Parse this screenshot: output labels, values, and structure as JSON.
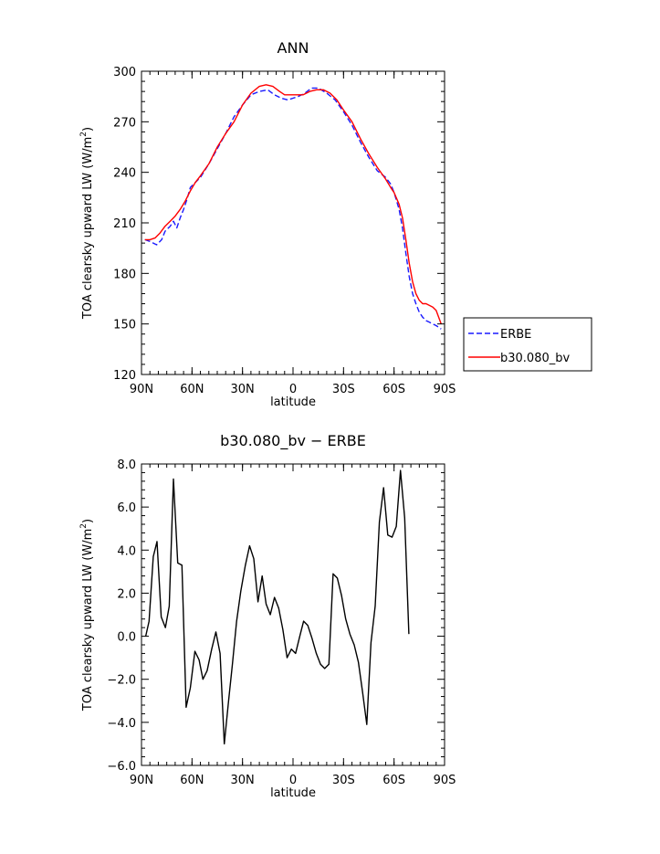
{
  "chart_data": [
    {
      "type": "line",
      "title": "ANN",
      "xlabel": "latitude",
      "ylabel": "TOA clearsky upward LW (W/m²)",
      "ylabel_main": "TOA clearsky upward LW (W/m",
      "ylabel_sup": "2",
      "ylabel_close": ")",
      "xlim": [
        -90,
        90
      ],
      "ylim": [
        120,
        300
      ],
      "xticks": [
        -90,
        -60,
        -30,
        0,
        30,
        60,
        90
      ],
      "xtick_labels": [
        "90N",
        "60N",
        "30N",
        "0",
        "30S",
        "60S",
        "90S"
      ],
      "yticks": [
        120,
        150,
        180,
        210,
        240,
        270,
        300
      ],
      "ytick_labels": [
        "120",
        "150",
        "180",
        "210",
        "240",
        "270",
        "300"
      ],
      "legend": {
        "placement": "right",
        "entries": [
          "ERBE",
          "b30.080_bv"
        ]
      },
      "series": [
        {
          "name": "ERBE",
          "color": "#1a1aff",
          "dash": "dashed",
          "points": [
            [
              -88,
              200
            ],
            [
              -85,
              199
            ],
            [
              -81,
              197
            ],
            [
              -78,
              200
            ],
            [
              -76,
              205
            ],
            [
              -73,
              208
            ],
            [
              -71,
              211
            ],
            [
              -69,
              207
            ],
            [
              -67,
              213
            ],
            [
              -65,
              218
            ],
            [
              -63,
              224
            ],
            [
              -61,
              231
            ],
            [
              -58,
              234
            ],
            [
              -55,
              237
            ],
            [
              -50,
              245
            ],
            [
              -45,
              254
            ],
            [
              -40,
              263
            ],
            [
              -35,
              273
            ],
            [
              -30,
              280
            ],
            [
              -25,
              286
            ],
            [
              -20,
              288
            ],
            [
              -15,
              289
            ],
            [
              -11,
              286
            ],
            [
              -7,
              284
            ],
            [
              -3,
              283
            ],
            [
              0,
              284
            ],
            [
              3,
              285
            ],
            [
              7,
              287
            ],
            [
              11,
              290
            ],
            [
              15,
              290
            ],
            [
              20,
              287
            ],
            [
              25,
              283
            ],
            [
              30,
              276
            ],
            [
              35,
              268
            ],
            [
              40,
              258
            ],
            [
              45,
              249
            ],
            [
              50,
              241
            ],
            [
              55,
              237
            ],
            [
              58,
              233
            ],
            [
              60,
              228
            ],
            [
              63,
              218
            ],
            [
              65,
              207
            ],
            [
              67,
              192
            ],
            [
              69,
              178
            ],
            [
              71,
              168
            ],
            [
              73,
              162
            ],
            [
              75,
              157
            ],
            [
              77,
              154
            ],
            [
              79,
              152
            ],
            [
              81,
              151
            ],
            [
              83,
              150
            ],
            [
              85,
              149
            ],
            [
              88,
              147
            ]
          ]
        },
        {
          "name": "b30.080_bv",
          "color": "#ff0000",
          "dash": "solid",
          "points": [
            [
              -88,
              200
            ],
            [
              -85,
              200
            ],
            [
              -82,
              201
            ],
            [
              -79,
              204
            ],
            [
              -76,
              208
            ],
            [
              -73,
              211
            ],
            [
              -70,
              214
            ],
            [
              -67,
              218
            ],
            [
              -64,
              223
            ],
            [
              -61,
              229
            ],
            [
              -58,
              234
            ],
            [
              -55,
              238
            ],
            [
              -50,
              245
            ],
            [
              -45,
              255
            ],
            [
              -40,
              263
            ],
            [
              -35,
              270
            ],
            [
              -30,
              280
            ],
            [
              -25,
              287
            ],
            [
              -20,
              291
            ],
            [
              -16,
              292
            ],
            [
              -12,
              291
            ],
            [
              -8,
              288
            ],
            [
              -5,
              286
            ],
            [
              -2,
              286
            ],
            [
              2,
              286
            ],
            [
              6,
              286
            ],
            [
              10,
              288
            ],
            [
              14,
              289
            ],
            [
              18,
              289
            ],
            [
              22,
              287
            ],
            [
              26,
              283
            ],
            [
              30,
              277
            ],
            [
              35,
              270
            ],
            [
              40,
              260
            ],
            [
              45,
              251
            ],
            [
              50,
              243
            ],
            [
              55,
              236
            ],
            [
              58,
              231
            ],
            [
              60,
              228
            ],
            [
              63,
              221
            ],
            [
              65,
              213
            ],
            [
              67,
              200
            ],
            [
              69,
              186
            ],
            [
              71,
              175
            ],
            [
              73,
              168
            ],
            [
              75,
              164
            ],
            [
              77,
              162
            ],
            [
              79,
              162
            ],
            [
              81,
              161
            ],
            [
              83,
              160
            ],
            [
              85,
              158
            ],
            [
              88,
              150
            ]
          ]
        }
      ]
    },
    {
      "type": "line",
      "title": "b30.080_bv − ERBE",
      "xlabel": "latitude",
      "ylabel": "TOA clearsky upward LW (W/m²)",
      "ylabel_main": "TOA clearsky upward LW (W/m",
      "ylabel_sup": "2",
      "ylabel_close": ")",
      "xlim": [
        -90,
        90
      ],
      "ylim": [
        -6,
        8
      ],
      "xticks": [
        -90,
        -60,
        -30,
        0,
        30,
        60,
        90
      ],
      "xtick_labels": [
        "90N",
        "60N",
        "30N",
        "0",
        "30S",
        "60S",
        "90S"
      ],
      "yticks": [
        -6,
        -4,
        -2,
        0,
        2,
        4,
        6,
        8
      ],
      "ytick_labels": [
        "−6.0",
        "−4.0",
        "−2.0",
        "0.0",
        "2.0",
        "4.0",
        "6.0",
        "8.0"
      ],
      "series": [
        {
          "color": "#000000",
          "dash": "solid",
          "points": [
            [
              -87.5,
              0.0
            ],
            [
              -85.5,
              0.7
            ],
            [
              -83,
              3.7
            ],
            [
              -80.8,
              4.4
            ],
            [
              -78.3,
              0.9
            ],
            [
              -75.8,
              0.4
            ],
            [
              -73.5,
              1.4
            ],
            [
              -71,
              7.3
            ],
            [
              -68.5,
              3.4
            ],
            [
              -66,
              3.3
            ],
            [
              -63.5,
              -3.3
            ],
            [
              -61,
              -2.4
            ],
            [
              -58.3,
              -0.7
            ],
            [
              -55.8,
              -1.1
            ],
            [
              -53.5,
              -2.0
            ],
            [
              -51,
              -1.6
            ],
            [
              -48.3,
              -0.6
            ],
            [
              -45.8,
              0.2
            ],
            [
              -43.3,
              -0.8
            ],
            [
              -40.8,
              -5.0
            ],
            [
              -38.3,
              -3.0
            ],
            [
              -36,
              -1.3
            ],
            [
              -33.5,
              0.7
            ],
            [
              -31,
              2.1
            ],
            [
              -28.3,
              3.3
            ],
            [
              -25.8,
              4.2
            ],
            [
              -23.3,
              3.6
            ],
            [
              -20.8,
              1.6
            ],
            [
              -18.3,
              2.8
            ],
            [
              -16,
              1.5
            ],
            [
              -13.5,
              1.0
            ],
            [
              -11,
              1.8
            ],
            [
              -8.5,
              1.3
            ],
            [
              -6,
              0.3
            ],
            [
              -3.5,
              -1.0
            ],
            [
              -1,
              -0.6
            ],
            [
              1.5,
              -0.8
            ],
            [
              4,
              0.0
            ],
            [
              6.3,
              0.7
            ],
            [
              8.8,
              0.5
            ],
            [
              11.3,
              -0.1
            ],
            [
              13.8,
              -0.8
            ],
            [
              16.3,
              -1.3
            ],
            [
              18.8,
              -1.5
            ],
            [
              21.3,
              -1.3
            ],
            [
              23.8,
              2.9
            ],
            [
              26.3,
              2.7
            ],
            [
              28.8,
              1.9
            ],
            [
              31.3,
              0.8
            ],
            [
              33.8,
              0.1
            ],
            [
              36.3,
              -0.4
            ],
            [
              38.8,
              -1.2
            ],
            [
              41.3,
              -2.6
            ],
            [
              43.8,
              -4.1
            ],
            [
              46.3,
              -0.3
            ],
            [
              48.8,
              1.4
            ],
            [
              51.3,
              5.3
            ],
            [
              53.8,
              6.9
            ],
            [
              56.3,
              4.7
            ],
            [
              58.8,
              4.6
            ],
            [
              61.3,
              5.1
            ],
            [
              63.8,
              7.7
            ],
            [
              66.3,
              5.5
            ],
            [
              68.8,
              0.1
            ]
          ]
        }
      ]
    }
  ]
}
